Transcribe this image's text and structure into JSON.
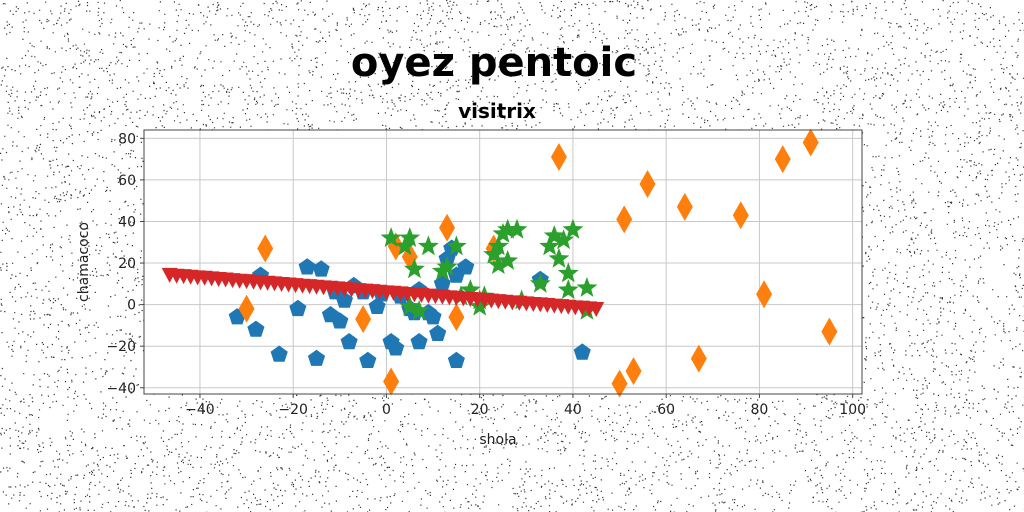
{
  "chart_data": {
    "type": "scatter",
    "title": "oyez pentoic",
    "subtitle": "visitrix",
    "xlabel": "shola",
    "ylabel": "chamacoco",
    "xlim": [
      -52,
      102
    ],
    "ylim": [
      -43,
      84
    ],
    "x_ticks": [
      -40,
      -20,
      0,
      20,
      40,
      60,
      80,
      100
    ],
    "y_ticks": [
      -40,
      -20,
      0,
      20,
      40,
      60,
      80
    ],
    "x_tick_labels": [
      "−40",
      "−20",
      "0",
      "20",
      "40",
      "60",
      "80",
      "100"
    ],
    "y_tick_labels": [
      "−40",
      "−20",
      "0",
      "20",
      "40",
      "60",
      "80"
    ],
    "grid": true,
    "series": [
      {
        "marker": "pentagon",
        "color": "#1f77b4",
        "points": [
          [
            -32,
            -6
          ],
          [
            -28,
            -12
          ],
          [
            -27,
            14
          ],
          [
            -23,
            -24
          ],
          [
            -19,
            -2
          ],
          [
            -17,
            18
          ],
          [
            -15,
            -26
          ],
          [
            -14,
            17
          ],
          [
            -12,
            -5
          ],
          [
            -11,
            6
          ],
          [
            -10,
            -8
          ],
          [
            -9,
            2
          ],
          [
            -8,
            -18
          ],
          [
            -7,
            9
          ],
          [
            -5,
            6
          ],
          [
            -4,
            -27
          ],
          [
            -2,
            -1
          ],
          [
            -1,
            5
          ],
          [
            1,
            -18
          ],
          [
            2,
            -21
          ],
          [
            3,
            4
          ],
          [
            5,
            -2
          ],
          [
            6,
            -4
          ],
          [
            7,
            7
          ],
          [
            7,
            -18
          ],
          [
            9,
            -4
          ],
          [
            10,
            -6
          ],
          [
            11,
            -14
          ],
          [
            12,
            10
          ],
          [
            13,
            22
          ],
          [
            14,
            27
          ],
          [
            15,
            14
          ],
          [
            15,
            -27
          ],
          [
            17,
            18
          ],
          [
            33,
            12
          ],
          [
            42,
            -23
          ]
        ]
      },
      {
        "marker": "diamond",
        "color": "#ff7f0e",
        "points": [
          [
            -26,
            27
          ],
          [
            -30,
            -2
          ],
          [
            -5,
            -7
          ],
          [
            1,
            -37
          ],
          [
            2,
            28
          ],
          [
            5,
            23
          ],
          [
            13,
            37
          ],
          [
            15,
            -6
          ],
          [
            23,
            27
          ],
          [
            37,
            71
          ],
          [
            50,
            -38
          ],
          [
            53,
            -32
          ],
          [
            51,
            41
          ],
          [
            56,
            58
          ],
          [
            64,
            47
          ],
          [
            67,
            -26
          ],
          [
            76,
            43
          ],
          [
            81,
            5
          ],
          [
            85,
            70
          ],
          [
            91,
            78
          ],
          [
            95,
            -13
          ]
        ]
      },
      {
        "marker": "star",
        "color": "#2ca02c",
        "points": [
          [
            1,
            32
          ],
          [
            4,
            28
          ],
          [
            5,
            32
          ],
          [
            6,
            17
          ],
          [
            9,
            28
          ],
          [
            5,
            -1
          ],
          [
            7,
            -3
          ],
          [
            12,
            16
          ],
          [
            13,
            18
          ],
          [
            15,
            28
          ],
          [
            16,
            4
          ],
          [
            20,
            -1
          ],
          [
            21,
            4
          ],
          [
            23,
            24
          ],
          [
            24,
            28
          ],
          [
            24,
            19
          ],
          [
            25,
            34
          ],
          [
            26,
            36
          ],
          [
            26,
            21
          ],
          [
            28,
            36
          ],
          [
            29,
            2
          ],
          [
            33,
            10
          ],
          [
            35,
            28
          ],
          [
            36,
            33
          ],
          [
            37,
            22
          ],
          [
            38,
            31
          ],
          [
            39,
            15
          ],
          [
            39,
            7
          ],
          [
            40,
            36
          ],
          [
            43,
            8
          ],
          [
            43,
            -3
          ],
          [
            20,
            2
          ],
          [
            18,
            7
          ]
        ]
      },
      {
        "marker": "triangle-down",
        "color": "#d62728",
        "points": [
          [
            -46.5,
            14.3
          ],
          [
            -45,
            13.9
          ],
          [
            -43.5,
            13.7
          ],
          [
            -42,
            13.4
          ],
          [
            -40.5,
            13.1
          ],
          [
            -39,
            12.9
          ],
          [
            -37.5,
            12.6
          ],
          [
            -36,
            12.3
          ],
          [
            -34.5,
            12.1
          ],
          [
            -33,
            11.8
          ],
          [
            -31.5,
            11.5
          ],
          [
            -30,
            11.3
          ],
          [
            -28.5,
            11
          ],
          [
            -27,
            10.7
          ],
          [
            -25.5,
            10.5
          ],
          [
            -24,
            10.2
          ],
          [
            -22.5,
            9.9
          ],
          [
            -21,
            9.7
          ],
          [
            -19.5,
            9.4
          ],
          [
            -18,
            9.1
          ],
          [
            -16.5,
            8.9
          ],
          [
            -15,
            8.6
          ],
          [
            -13.5,
            8.3
          ],
          [
            -12,
            8.1
          ],
          [
            -10.5,
            7.8
          ],
          [
            -9,
            7.5
          ],
          [
            -7.5,
            7.3
          ],
          [
            -6,
            7
          ],
          [
            -4.5,
            6.7
          ],
          [
            -3,
            6.5
          ],
          [
            -1.5,
            6.2
          ],
          [
            0,
            5.9
          ],
          [
            1.5,
            5.7
          ],
          [
            3,
            5.4
          ],
          [
            4.5,
            5.1
          ],
          [
            6,
            4.9
          ],
          [
            7.5,
            4.6
          ],
          [
            9,
            4.3
          ],
          [
            10.5,
            4.1
          ],
          [
            12,
            3.8
          ],
          [
            13.5,
            3.5
          ],
          [
            15,
            3.3
          ],
          [
            16.5,
            3
          ],
          [
            18,
            2.7
          ],
          [
            19.5,
            2.5
          ],
          [
            21,
            2.2
          ],
          [
            22.5,
            1.9
          ],
          [
            24,
            1.7
          ],
          [
            25.5,
            1.4
          ],
          [
            27,
            1.1
          ],
          [
            28.5,
            0.9
          ],
          [
            30,
            0.6
          ],
          [
            31.5,
            0.3
          ],
          [
            33,
            0.1
          ],
          [
            34.5,
            -0.2
          ],
          [
            36,
            -0.5
          ],
          [
            37.5,
            -0.7
          ],
          [
            39,
            -1
          ],
          [
            40.5,
            -1.3
          ],
          [
            42,
            -1.5
          ],
          [
            43.5,
            -1.8
          ],
          [
            45,
            -2.1
          ]
        ]
      }
    ]
  }
}
